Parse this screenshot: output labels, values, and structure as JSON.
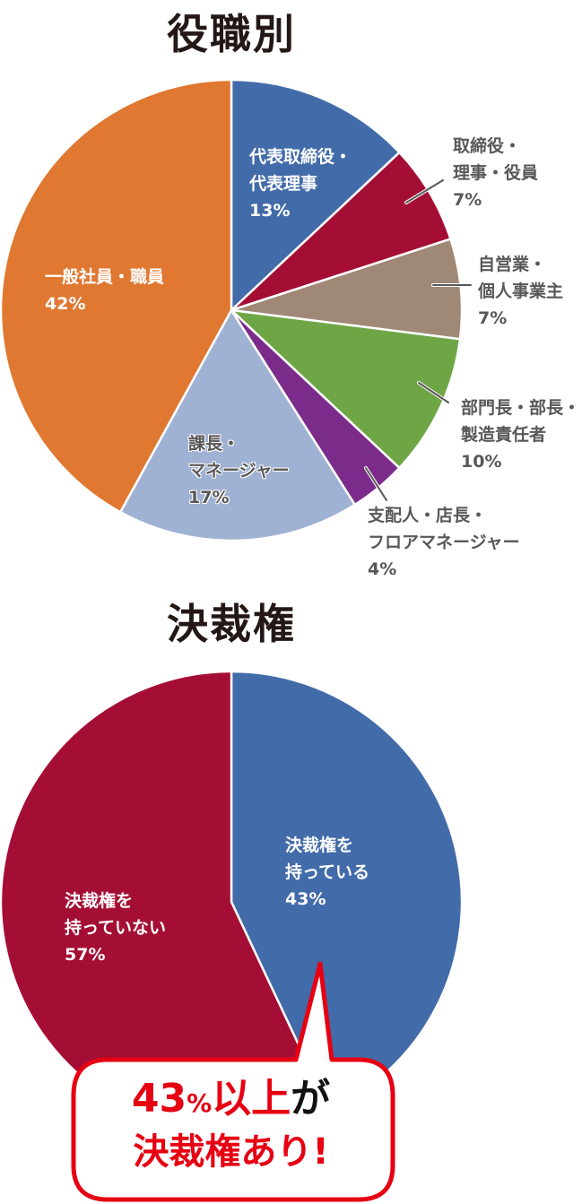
{
  "chart_data": [
    {
      "type": "pie",
      "title": "役職別",
      "start_angle": "12 o'clock, clockwise",
      "categories": [
        "代表取締役・代表理事",
        "取締役・理事・役員",
        "自営業・個人事業主",
        "部門長・部長・製造責任者",
        "支配人・店長・フロアマネージャー",
        "課長・マネージャー",
        "一般社員・職員"
      ],
      "values": [
        13,
        7,
        7,
        10,
        4,
        17,
        42
      ],
      "unit": "%",
      "colors": [
        "#426ba9",
        "#a50e34",
        "#a08877",
        "#6ea646",
        "#7b2c8b",
        "#a0b2d3",
        "#e07832"
      ]
    },
    {
      "type": "pie",
      "title": "決裁権",
      "start_angle": "12 o'clock, clockwise",
      "categories": [
        "決裁権を持っている",
        "決裁権を持っていない"
      ],
      "values": [
        43,
        57
      ],
      "unit": "%",
      "colors": [
        "#426ba9",
        "#a50e34"
      ],
      "annotation": "43%以上が決裁権あり!"
    }
  ],
  "chart1": {
    "title": "役職別",
    "labels": {
      "ceo": {
        "line1": "代表取締役・",
        "line2": "代表理事",
        "pct": "13%"
      },
      "director": {
        "line1": "取締役・",
        "line2": "理事・役員",
        "pct": "7%"
      },
      "selfemployed": {
        "line1": "自営業・",
        "line2": "個人事業主",
        "pct": "7%"
      },
      "depthead": {
        "line1": "部門長・部長・",
        "line2": "製造責任者",
        "pct": "10%"
      },
      "manager_store": {
        "line1": "支配人・店長・",
        "line2": "フロアマネージャー",
        "pct": "4%"
      },
      "section": {
        "line1": "課長・",
        "line2": "マネージャー",
        "pct": "17%"
      },
      "staff": {
        "line1": "一般社員・職員",
        "pct": "42%"
      }
    }
  },
  "chart2": {
    "title": "決裁権",
    "labels": {
      "has": {
        "line1": "決裁権を",
        "line2": "持っている",
        "pct": "43%"
      },
      "hasnot": {
        "line1": "決裁権を",
        "line2": "持っていない",
        "pct": "57%"
      }
    },
    "callout": {
      "num": "43",
      "pct": "%",
      "rest": "以上",
      "ga": "が",
      "line2": "決裁権あり!"
    }
  }
}
